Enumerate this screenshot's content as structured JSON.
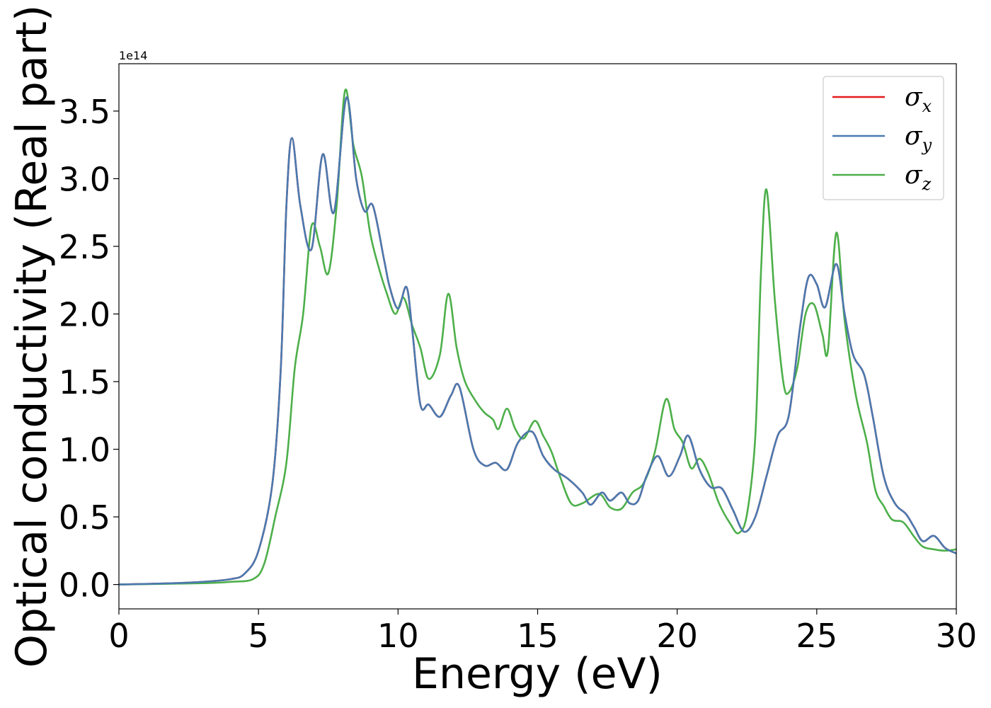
{
  "chart_data": {
    "type": "line",
    "title": "",
    "xlabel": "Energy (eV)",
    "ylabel": "Optical conductivity (Real part)",
    "y_offset_label": "1e14",
    "xlim": [
      0,
      30
    ],
    "ylim": [
      -0.18,
      3.85
    ],
    "x_ticks": [
      0,
      5,
      10,
      15,
      20,
      25,
      30
    ],
    "x_tick_labels": [
      "0",
      "5",
      "10",
      "15",
      "20",
      "25",
      "30"
    ],
    "y_ticks": [
      0.0,
      0.5,
      1.0,
      1.5,
      2.0,
      2.5,
      3.0,
      3.5
    ],
    "y_tick_labels": [
      "0.0",
      "0.5",
      "1.0",
      "1.5",
      "2.0",
      "2.5",
      "3.0",
      "3.5"
    ],
    "grid": false,
    "legend_position": "top-right",
    "series": [
      {
        "name": "σx",
        "symbol": "σ",
        "subscript": "x",
        "color": "#e41a1c",
        "points": [
          [
            0,
            0
          ],
          [
            2,
            0.01
          ],
          [
            3,
            0.02
          ],
          [
            4,
            0.04
          ],
          [
            4.5,
            0.08
          ],
          [
            5,
            0.25
          ],
          [
            5.5,
            0.75
          ],
          [
            5.8,
            1.6
          ],
          [
            6.0,
            2.8
          ],
          [
            6.2,
            3.3
          ],
          [
            6.5,
            2.8
          ],
          [
            6.9,
            2.48
          ],
          [
            7.3,
            3.18
          ],
          [
            7.7,
            2.75
          ],
          [
            8.15,
            3.6
          ],
          [
            8.5,
            3.0
          ],
          [
            8.8,
            2.76
          ],
          [
            9.1,
            2.8
          ],
          [
            9.5,
            2.4
          ],
          [
            9.7,
            2.2
          ],
          [
            10.0,
            2.04
          ],
          [
            10.3,
            2.2
          ],
          [
            10.5,
            1.9
          ],
          [
            10.8,
            1.33
          ],
          [
            11.1,
            1.33
          ],
          [
            11.5,
            1.24
          ],
          [
            11.9,
            1.4
          ],
          [
            12.2,
            1.46
          ],
          [
            12.7,
            1.0
          ],
          [
            13.1,
            0.88
          ],
          [
            13.5,
            0.9
          ],
          [
            13.9,
            0.85
          ],
          [
            14.3,
            1.05
          ],
          [
            14.8,
            1.13
          ],
          [
            15.2,
            0.95
          ],
          [
            15.6,
            0.85
          ],
          [
            16.1,
            0.78
          ],
          [
            16.6,
            0.68
          ],
          [
            16.9,
            0.59
          ],
          [
            17.3,
            0.68
          ],
          [
            17.6,
            0.62
          ],
          [
            18.0,
            0.68
          ],
          [
            18.3,
            0.6
          ],
          [
            18.6,
            0.62
          ],
          [
            18.9,
            0.8
          ],
          [
            19.3,
            0.95
          ],
          [
            19.7,
            0.8
          ],
          [
            20.1,
            0.95
          ],
          [
            20.4,
            1.1
          ],
          [
            20.8,
            0.85
          ],
          [
            21.2,
            0.72
          ],
          [
            21.6,
            0.71
          ],
          [
            22.0,
            0.55
          ],
          [
            22.4,
            0.39
          ],
          [
            22.8,
            0.5
          ],
          [
            23.2,
            0.8
          ],
          [
            23.6,
            1.1
          ],
          [
            24.0,
            1.25
          ],
          [
            24.4,
            1.9
          ],
          [
            24.7,
            2.27
          ],
          [
            25.0,
            2.22
          ],
          [
            25.3,
            2.05
          ],
          [
            25.7,
            2.37
          ],
          [
            26.0,
            2.0
          ],
          [
            26.3,
            1.7
          ],
          [
            26.7,
            1.55
          ],
          [
            27.0,
            1.25
          ],
          [
            27.4,
            0.8
          ],
          [
            27.8,
            0.6
          ],
          [
            28.2,
            0.52
          ],
          [
            28.5,
            0.42
          ],
          [
            28.8,
            0.32
          ],
          [
            29.2,
            0.36
          ],
          [
            29.6,
            0.27
          ],
          [
            30.0,
            0.23
          ]
        ]
      },
      {
        "name": "σy",
        "symbol": "σ",
        "subscript": "y",
        "color": "#4a7ab0",
        "points": [
          [
            0,
            0
          ],
          [
            2,
            0.01
          ],
          [
            3,
            0.02
          ],
          [
            4,
            0.04
          ],
          [
            4.5,
            0.08
          ],
          [
            5,
            0.25
          ],
          [
            5.5,
            0.75
          ],
          [
            5.8,
            1.6
          ],
          [
            6.0,
            2.8
          ],
          [
            6.2,
            3.3
          ],
          [
            6.5,
            2.8
          ],
          [
            6.9,
            2.48
          ],
          [
            7.3,
            3.18
          ],
          [
            7.7,
            2.75
          ],
          [
            8.15,
            3.6
          ],
          [
            8.5,
            3.0
          ],
          [
            8.8,
            2.76
          ],
          [
            9.1,
            2.8
          ],
          [
            9.5,
            2.4
          ],
          [
            9.7,
            2.2
          ],
          [
            10.0,
            2.04
          ],
          [
            10.3,
            2.2
          ],
          [
            10.5,
            1.9
          ],
          [
            10.8,
            1.33
          ],
          [
            11.1,
            1.33
          ],
          [
            11.5,
            1.24
          ],
          [
            11.9,
            1.4
          ],
          [
            12.2,
            1.46
          ],
          [
            12.7,
            1.0
          ],
          [
            13.1,
            0.88
          ],
          [
            13.5,
            0.9
          ],
          [
            13.9,
            0.85
          ],
          [
            14.3,
            1.05
          ],
          [
            14.8,
            1.13
          ],
          [
            15.2,
            0.95
          ],
          [
            15.6,
            0.85
          ],
          [
            16.1,
            0.78
          ],
          [
            16.6,
            0.68
          ],
          [
            16.9,
            0.59
          ],
          [
            17.3,
            0.68
          ],
          [
            17.6,
            0.62
          ],
          [
            18.0,
            0.68
          ],
          [
            18.3,
            0.6
          ],
          [
            18.6,
            0.62
          ],
          [
            18.9,
            0.8
          ],
          [
            19.3,
            0.95
          ],
          [
            19.7,
            0.8
          ],
          [
            20.1,
            0.95
          ],
          [
            20.4,
            1.1
          ],
          [
            20.8,
            0.85
          ],
          [
            21.2,
            0.72
          ],
          [
            21.6,
            0.71
          ],
          [
            22.0,
            0.55
          ],
          [
            22.4,
            0.39
          ],
          [
            22.8,
            0.5
          ],
          [
            23.2,
            0.8
          ],
          [
            23.6,
            1.1
          ],
          [
            24.0,
            1.25
          ],
          [
            24.4,
            1.9
          ],
          [
            24.7,
            2.27
          ],
          [
            25.0,
            2.22
          ],
          [
            25.3,
            2.05
          ],
          [
            25.7,
            2.37
          ],
          [
            26.0,
            2.0
          ],
          [
            26.3,
            1.7
          ],
          [
            26.7,
            1.55
          ],
          [
            27.0,
            1.25
          ],
          [
            27.4,
            0.8
          ],
          [
            27.8,
            0.6
          ],
          [
            28.2,
            0.52
          ],
          [
            28.5,
            0.42
          ],
          [
            28.8,
            0.32
          ],
          [
            29.2,
            0.36
          ],
          [
            29.6,
            0.27
          ],
          [
            30.0,
            0.23
          ]
        ]
      },
      {
        "name": "σz",
        "symbol": "σ",
        "subscript": "z",
        "color": "#4daf4a",
        "points": [
          [
            0,
            0
          ],
          [
            3,
            0.01
          ],
          [
            4,
            0.02
          ],
          [
            4.8,
            0.04
          ],
          [
            5.2,
            0.15
          ],
          [
            5.6,
            0.5
          ],
          [
            6.0,
            0.9
          ],
          [
            6.3,
            1.6
          ],
          [
            6.6,
            2.0
          ],
          [
            6.9,
            2.65
          ],
          [
            7.2,
            2.5
          ],
          [
            7.5,
            2.3
          ],
          [
            7.8,
            2.8
          ],
          [
            8.1,
            3.65
          ],
          [
            8.4,
            3.25
          ],
          [
            8.7,
            3.02
          ],
          [
            9.0,
            2.6
          ],
          [
            9.3,
            2.35
          ],
          [
            9.6,
            2.15
          ],
          [
            9.9,
            2.0
          ],
          [
            10.2,
            2.12
          ],
          [
            10.5,
            1.92
          ],
          [
            10.8,
            1.75
          ],
          [
            11.1,
            1.52
          ],
          [
            11.5,
            1.7
          ],
          [
            11.8,
            2.15
          ],
          [
            12.1,
            1.75
          ],
          [
            12.4,
            1.5
          ],
          [
            12.8,
            1.35
          ],
          [
            13.1,
            1.27
          ],
          [
            13.4,
            1.22
          ],
          [
            13.6,
            1.15
          ],
          [
            13.9,
            1.3
          ],
          [
            14.2,
            1.15
          ],
          [
            14.5,
            1.08
          ],
          [
            14.9,
            1.21
          ],
          [
            15.2,
            1.1
          ],
          [
            15.5,
            0.98
          ],
          [
            15.8,
            0.8
          ],
          [
            16.2,
            0.6
          ],
          [
            16.6,
            0.6
          ],
          [
            17.2,
            0.67
          ],
          [
            17.6,
            0.57
          ],
          [
            18.0,
            0.56
          ],
          [
            18.4,
            0.68
          ],
          [
            18.8,
            0.75
          ],
          [
            19.2,
            0.98
          ],
          [
            19.6,
            1.37
          ],
          [
            19.9,
            1.15
          ],
          [
            20.2,
            1.05
          ],
          [
            20.5,
            0.86
          ],
          [
            20.8,
            0.93
          ],
          [
            21.1,
            0.83
          ],
          [
            21.5,
            0.6
          ],
          [
            21.9,
            0.45
          ],
          [
            22.2,
            0.38
          ],
          [
            22.5,
            0.52
          ],
          [
            22.8,
            1.1
          ],
          [
            23.0,
            2.3
          ],
          [
            23.2,
            2.92
          ],
          [
            23.5,
            2.1
          ],
          [
            23.8,
            1.5
          ],
          [
            24.0,
            1.42
          ],
          [
            24.3,
            1.6
          ],
          [
            24.6,
            2.0
          ],
          [
            24.9,
            2.07
          ],
          [
            25.2,
            1.85
          ],
          [
            25.4,
            1.73
          ],
          [
            25.7,
            2.6
          ],
          [
            26.0,
            1.95
          ],
          [
            26.4,
            1.4
          ],
          [
            26.8,
            1.05
          ],
          [
            27.1,
            0.7
          ],
          [
            27.4,
            0.58
          ],
          [
            27.7,
            0.48
          ],
          [
            28.1,
            0.46
          ],
          [
            28.5,
            0.35
          ],
          [
            28.8,
            0.28
          ],
          [
            29.2,
            0.26
          ],
          [
            29.6,
            0.25
          ],
          [
            30.0,
            0.26
          ]
        ]
      }
    ]
  }
}
